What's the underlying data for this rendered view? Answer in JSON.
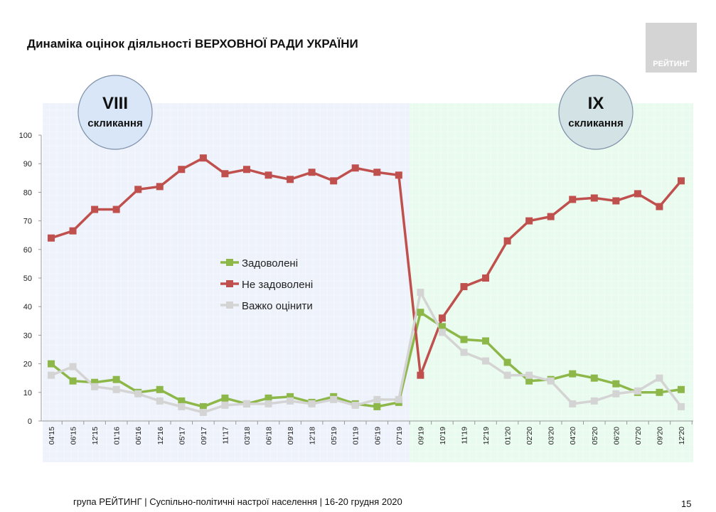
{
  "title": "Динаміка оцінок діяльності ВЕРХОВНОЇ РАДИ УКРАЇНИ",
  "logo_text": "РЕЙТИНГ",
  "footer": "група РЕЙТИНГ | Суспільно-політичні настрої населення | 16-20 грудня 2020",
  "page_number": "15",
  "periods": [
    {
      "label_line1": "VIII",
      "label_line2": "скликання",
      "color": "#eef2fb",
      "circle_color": "#d9e6f7"
    },
    {
      "label_line1": "IX",
      "label_line2": "скликання",
      "color": "#e9fbee",
      "circle_color": "#d3e2e4"
    }
  ],
  "chart_data": {
    "type": "line",
    "title": "",
    "ylim": [
      0,
      100
    ],
    "yticks": [
      0,
      10,
      20,
      30,
      40,
      50,
      60,
      70,
      80,
      90,
      100
    ],
    "grid": true,
    "legend_placement": "center",
    "categories": [
      "04'15",
      "06'15",
      "12'15",
      "01'16",
      "06'16",
      "12'16",
      "05'17",
      "09'17",
      "11'17",
      "03'18",
      "06'18",
      "09'18",
      "12'18",
      "05'19",
      "01'19",
      "06'19",
      "07'19",
      "09'19",
      "10'19",
      "11'19",
      "12'19",
      "01'20",
      "02'20",
      "03'20",
      "04'20",
      "05'20",
      "06'20",
      "07'20",
      "09'20",
      "12'20"
    ],
    "series": [
      {
        "name": "Задоволені",
        "color": "#8db849",
        "values": [
          20,
          14,
          13.5,
          14.5,
          10,
          11,
          7,
          5,
          8,
          6,
          8,
          8.5,
          6.5,
          8.5,
          6,
          5,
          6.5,
          38,
          33,
          28.5,
          28,
          20.5,
          14,
          14.5,
          16.5,
          15,
          13,
          10,
          10,
          11
        ]
      },
      {
        "name": "Не задоволені",
        "color": "#c0504d",
        "values": [
          64,
          66.5,
          74,
          74,
          81,
          82,
          88,
          92,
          86.5,
          88,
          86,
          84.5,
          87,
          84,
          88.5,
          87,
          86,
          16,
          36,
          47,
          50,
          63,
          70,
          71.5,
          77.5,
          78,
          77,
          79.5,
          75,
          84
        ]
      },
      {
        "name": "Важко оцінити",
        "color": "#d4d4d4",
        "values": [
          16,
          19,
          12,
          11,
          9.5,
          7,
          5,
          3,
          5.5,
          6,
          6,
          7,
          6,
          7.5,
          5.5,
          7.5,
          7.5,
          45,
          31,
          24,
          21,
          16,
          16,
          14,
          6,
          7,
          9.5,
          10.5,
          15,
          5
        ]
      }
    ]
  }
}
